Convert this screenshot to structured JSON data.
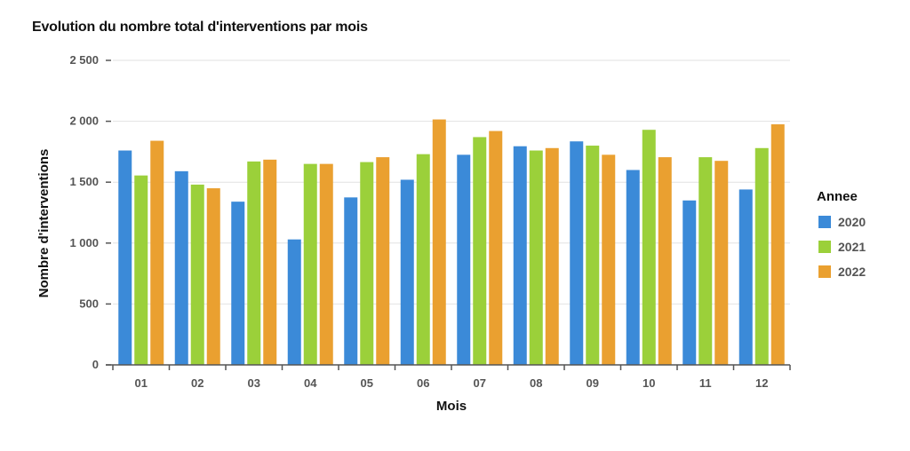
{
  "chart_data": {
    "type": "bar",
    "title": "Evolution du nombre total d'interventions par mois",
    "xlabel": "Mois",
    "ylabel": "Nombre d'interventions",
    "categories": [
      "01",
      "02",
      "03",
      "04",
      "05",
      "06",
      "07",
      "08",
      "09",
      "10",
      "11",
      "12"
    ],
    "yticks": [
      "0",
      "500",
      "1 000",
      "1 500",
      "2 000",
      "2 500"
    ],
    "ylim": [
      0,
      2500
    ],
    "grid": true,
    "legend": {
      "title": "Annee",
      "placement": "right"
    },
    "series": [
      {
        "name": "2020",
        "color": "#3b8ad8",
        "values": [
          1760,
          1590,
          1340,
          1030,
          1375,
          1520,
          1725,
          1795,
          1835,
          1600,
          1350,
          1440
        ]
      },
      {
        "name": "2021",
        "color": "#9bd03a",
        "values": [
          1555,
          1480,
          1670,
          1650,
          1665,
          1730,
          1870,
          1760,
          1800,
          1930,
          1705,
          1780
        ]
      },
      {
        "name": "2022",
        "color": "#eaa030",
        "values": [
          1840,
          1450,
          1685,
          1650,
          1705,
          2015,
          1920,
          1780,
          1725,
          1705,
          1675,
          1975
        ]
      }
    ]
  }
}
